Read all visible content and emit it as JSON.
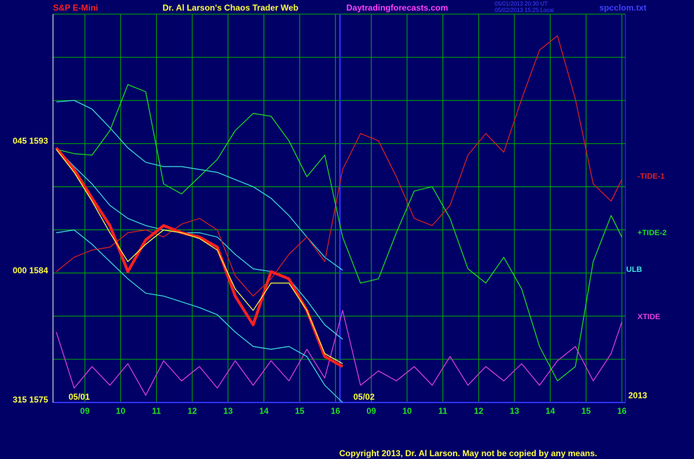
{
  "chart_data": {
    "type": "line",
    "title": "Dr. Al Larson's Chaos Trader Web",
    "symbol": "S&P E-Mini",
    "site": "Daytradingforecasts.com",
    "stamps": [
      "05/01/2013 20:30 UT",
      "05/02/2013 15:25 Local"
    ],
    "file": "spcclom.txt",
    "copyright": "Copyright 2013, Dr. Al Larson. May not be copied by any means.",
    "date_labels": [
      "05/01",
      "05/02",
      "2013"
    ],
    "xlim": [
      0.11,
      16.1
    ],
    "xticks": [
      {
        "value": 1,
        "label": "09"
      },
      {
        "value": 2,
        "label": "10"
      },
      {
        "value": 3,
        "label": "11"
      },
      {
        "value": 4,
        "label": "12"
      },
      {
        "value": 5,
        "label": "13"
      },
      {
        "value": 6,
        "label": "14"
      },
      {
        "value": 7,
        "label": "15"
      },
      {
        "value": 8,
        "label": "16"
      },
      {
        "value": 9,
        "label": "09"
      },
      {
        "value": 10,
        "label": "10"
      },
      {
        "value": 11,
        "label": "11"
      },
      {
        "value": 12,
        "label": "12"
      },
      {
        "value": 13,
        "label": "13"
      },
      {
        "value": 14,
        "label": "14"
      },
      {
        "value": 15,
        "label": "15"
      },
      {
        "value": 16,
        "label": "16"
      }
    ],
    "ylim": [
      1575,
      1602
    ],
    "yticks": [
      {
        "value": 1575,
        "label": "315 1575"
      },
      {
        "value": 1584,
        "label": "000 1584"
      },
      {
        "value": 1593,
        "label": "045 1593"
      }
    ],
    "ygrid": [
      1578,
      1581,
      1587,
      1590,
      1596,
      1599,
      1602
    ],
    "grid": true,
    "grid_color": "#00b000",
    "x": [
      0.2,
      0.7,
      1.2,
      1.7,
      2.2,
      2.7,
      3.2,
      3.7,
      4.2,
      4.7,
      5.2,
      5.7,
      6.2,
      6.7,
      7.2,
      7.7,
      8.2,
      8.7,
      9.2,
      9.7,
      10.2,
      10.7,
      11.2,
      11.7,
      12.2,
      12.7,
      13.2,
      13.7,
      14.2,
      14.7,
      15.2,
      15.7,
      16.0
    ],
    "series": [
      {
        "name": "XTIDE",
        "color": "#e040e0",
        "values": [
          1579.9,
          1576.0,
          1577.5,
          1576.2,
          1577.7,
          1575.5,
          1577.9,
          1576.5,
          1577.5,
          1576.0,
          1577.9,
          1576.2,
          1577.9,
          1576.5,
          1578.7,
          1576.7,
          1581.4,
          1576.2,
          1577.2,
          1576.5,
          1577.5,
          1576.2,
          1578.2,
          1576.2,
          1577.5,
          1576.5,
          1577.7,
          1576.2,
          1577.9,
          1578.9,
          1576.5,
          1578.4,
          1580.6
        ]
      },
      {
        "name": "ULB",
        "color": "#40e0e0",
        "values": [
          1595.9,
          1596.0,
          1595.4,
          1594.1,
          1592.7,
          1591.7,
          1591.4,
          1591.4,
          1591.2,
          1591.0,
          1590.5,
          1590.0,
          1589.2,
          1588.0,
          1586.5,
          1585.1,
          1584.2,
          null,
          null,
          null,
          null,
          null,
          null,
          null,
          null,
          null,
          null,
          null,
          null,
          null,
          null,
          null,
          null
        ]
      },
      {
        "color": "#40e0e0",
        "values": [
          1592.7,
          1591.4,
          1590.2,
          1588.7,
          1587.8,
          1587.3,
          1587.0,
          1586.8,
          1586.8,
          1586.5,
          1585.3,
          1584.3,
          1584.1,
          1583.6,
          1582.1,
          1580.4,
          1579.4,
          null,
          null,
          null,
          null,
          null,
          null,
          null,
          null,
          null,
          null,
          null,
          null,
          null,
          null,
          null,
          null
        ]
      },
      {
        "color": "#40e0e0",
        "values": [
          1586.8,
          1587.0,
          1586.0,
          1584.8,
          1583.6,
          1582.6,
          1582.4,
          1582.0,
          1581.6,
          1581.1,
          1579.9,
          1578.9,
          1578.7,
          1578.9,
          1578.2,
          1576.2,
          1575.0,
          null,
          null,
          null,
          null,
          null,
          null,
          null,
          null,
          null,
          null,
          null,
          null,
          null,
          null,
          null,
          null
        ]
      },
      {
        "name": "-TIDE-1",
        "color": "#e02020",
        "values": [
          1584.1,
          1585.1,
          1585.6,
          1585.8,
          1586.8,
          1587.0,
          1586.5,
          1587.4,
          1587.8,
          1587.0,
          1583.8,
          1582.4,
          1583.6,
          1585.3,
          1586.5,
          1584.8,
          1591.2,
          1593.7,
          1593.2,
          1590.7,
          1587.8,
          1587.3,
          1588.7,
          1592.2,
          1593.7,
          1592.4,
          1596.1,
          1599.5,
          1600.5,
          1596.1,
          1590.2,
          1589.0,
          1590.5
        ]
      },
      {
        "name": "+TIDE-2",
        "color": "#20e020",
        "values": [
          1592.6,
          1592.3,
          1592.2,
          1593.9,
          1597.1,
          1596.6,
          1590.2,
          1589.5,
          1590.7,
          1591.9,
          1593.9,
          1595.1,
          1594.9,
          1593.2,
          1590.7,
          1592.2,
          1586.5,
          1583.3,
          1583.6,
          1586.8,
          1589.7,
          1590.0,
          1587.8,
          1584.3,
          1583.3,
          1585.1,
          1582.9,
          1578.9,
          1576.5,
          1577.5,
          1584.8,
          1588.0,
          1586.5
        ]
      },
      {
        "color": "#ff2020",
        "width": 4,
        "values": [
          1592.7,
          1591.2,
          1589.2,
          1587.3,
          1584.1,
          1586.3,
          1587.3,
          1586.8,
          1586.5,
          1585.8,
          1582.4,
          1580.4,
          1584.1,
          1583.6,
          1581.4,
          1578.2,
          1577.5,
          null,
          null,
          null,
          null,
          null,
          null,
          null,
          null,
          null,
          null,
          null,
          null,
          null,
          null,
          null,
          null
        ]
      },
      {
        "color": "#ffff40",
        "values": [
          1592.6,
          1591.0,
          1589.0,
          1586.8,
          1584.8,
          1586.0,
          1587.0,
          1586.8,
          1586.4,
          1585.6,
          1582.9,
          1581.4,
          1583.3,
          1583.3,
          1581.4,
          1578.4,
          1577.7,
          null,
          null,
          null,
          null,
          null,
          null,
          null,
          null,
          null,
          null,
          null,
          null,
          null,
          null,
          null,
          null
        ]
      }
    ]
  }
}
